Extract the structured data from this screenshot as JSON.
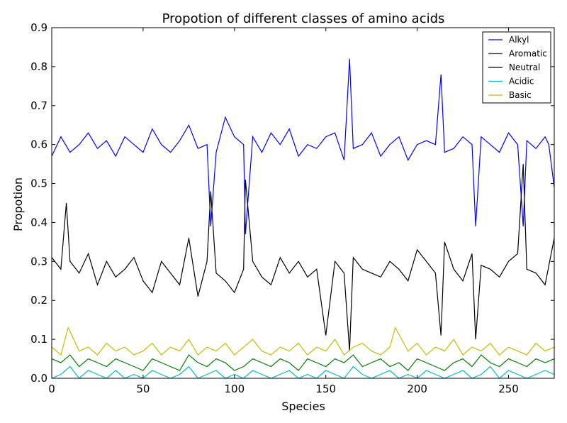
{
  "chart_data": {
    "type": "line",
    "title": "Propotion of different classes of amino acids",
    "xlabel": "Species",
    "ylabel": "Propotion",
    "xlim": [
      0,
      275
    ],
    "ylim": [
      0.0,
      0.9
    ],
    "xticks": [
      0,
      50,
      100,
      150,
      200,
      250
    ],
    "yticks": [
      0.0,
      0.1,
      0.2,
      0.3,
      0.4,
      0.5,
      0.6,
      0.7,
      0.8,
      0.9
    ],
    "ytick_labels": [
      "0.0",
      "0.1",
      "0.2",
      "0.3",
      "0.4",
      "0.5",
      "0.6",
      "0.7",
      "0.8",
      "0.9"
    ],
    "legend_position": "top-right",
    "grid": false,
    "series": [
      {
        "name": "Alkyl",
        "color": "#0000ff",
        "x": [
          0,
          5,
          10,
          15,
          20,
          25,
          30,
          35,
          40,
          45,
          50,
          55,
          60,
          65,
          70,
          75,
          80,
          85,
          87,
          90,
          95,
          100,
          105,
          106,
          110,
          115,
          120,
          125,
          130,
          135,
          140,
          145,
          150,
          155,
          160,
          163,
          165,
          170,
          175,
          180,
          185,
          190,
          195,
          200,
          205,
          210,
          213,
          215,
          220,
          225,
          230,
          232,
          235,
          240,
          245,
          250,
          255,
          258,
          260,
          265,
          270,
          272,
          275
        ],
        "values": [
          0.57,
          0.62,
          0.58,
          0.6,
          0.63,
          0.59,
          0.61,
          0.57,
          0.62,
          0.6,
          0.58,
          0.64,
          0.6,
          0.58,
          0.61,
          0.65,
          0.59,
          0.6,
          0.39,
          0.58,
          0.67,
          0.62,
          0.6,
          0.37,
          0.62,
          0.58,
          0.63,
          0.6,
          0.64,
          0.57,
          0.6,
          0.59,
          0.62,
          0.63,
          0.56,
          0.82,
          0.59,
          0.6,
          0.63,
          0.57,
          0.6,
          0.62,
          0.56,
          0.6,
          0.61,
          0.6,
          0.78,
          0.58,
          0.59,
          0.62,
          0.6,
          0.39,
          0.62,
          0.6,
          0.58,
          0.63,
          0.6,
          0.39,
          0.61,
          0.59,
          0.62,
          0.6,
          0.49
        ]
      },
      {
        "name": "Aromatic",
        "color": "#008000",
        "x": [
          0,
          5,
          10,
          15,
          20,
          25,
          30,
          35,
          40,
          45,
          50,
          55,
          60,
          65,
          70,
          75,
          80,
          85,
          90,
          95,
          100,
          105,
          110,
          115,
          120,
          125,
          130,
          135,
          140,
          145,
          150,
          155,
          160,
          165,
          170,
          175,
          180,
          185,
          190,
          195,
          200,
          205,
          210,
          215,
          220,
          225,
          230,
          235,
          240,
          245,
          250,
          255,
          260,
          265,
          270,
          275
        ],
        "values": [
          0.05,
          0.04,
          0.06,
          0.03,
          0.05,
          0.04,
          0.03,
          0.05,
          0.04,
          0.03,
          0.02,
          0.05,
          0.04,
          0.03,
          0.02,
          0.06,
          0.04,
          0.03,
          0.05,
          0.04,
          0.02,
          0.03,
          0.05,
          0.04,
          0.03,
          0.05,
          0.04,
          0.02,
          0.05,
          0.04,
          0.03,
          0.05,
          0.04,
          0.06,
          0.03,
          0.04,
          0.05,
          0.03,
          0.04,
          0.02,
          0.05,
          0.04,
          0.03,
          0.02,
          0.04,
          0.05,
          0.03,
          0.06,
          0.04,
          0.03,
          0.05,
          0.04,
          0.03,
          0.05,
          0.04,
          0.05
        ]
      },
      {
        "name": "Neutral",
        "color": "#000000",
        "x": [
          0,
          5,
          8,
          10,
          15,
          20,
          25,
          30,
          35,
          40,
          45,
          50,
          55,
          60,
          65,
          70,
          75,
          80,
          85,
          87,
          90,
          95,
          100,
          105,
          106,
          110,
          115,
          120,
          125,
          130,
          135,
          140,
          145,
          150,
          155,
          160,
          163,
          165,
          170,
          175,
          180,
          185,
          190,
          195,
          200,
          205,
          210,
          213,
          215,
          220,
          225,
          230,
          232,
          235,
          240,
          245,
          250,
          255,
          258,
          260,
          265,
          270,
          275
        ],
        "values": [
          0.31,
          0.28,
          0.45,
          0.3,
          0.27,
          0.32,
          0.24,
          0.3,
          0.26,
          0.28,
          0.31,
          0.25,
          0.22,
          0.3,
          0.27,
          0.24,
          0.36,
          0.21,
          0.3,
          0.48,
          0.27,
          0.25,
          0.22,
          0.28,
          0.51,
          0.3,
          0.26,
          0.24,
          0.31,
          0.27,
          0.3,
          0.26,
          0.28,
          0.11,
          0.3,
          0.27,
          0.07,
          0.31,
          0.28,
          0.27,
          0.26,
          0.3,
          0.28,
          0.25,
          0.33,
          0.3,
          0.27,
          0.11,
          0.35,
          0.28,
          0.25,
          0.32,
          0.1,
          0.29,
          0.28,
          0.26,
          0.3,
          0.32,
          0.55,
          0.28,
          0.27,
          0.24,
          0.36
        ]
      },
      {
        "name": "Acidic",
        "color": "#00bfbf",
        "x": [
          0,
          5,
          10,
          15,
          20,
          25,
          30,
          35,
          40,
          45,
          50,
          55,
          60,
          65,
          70,
          75,
          80,
          85,
          90,
          95,
          100,
          105,
          110,
          115,
          120,
          125,
          130,
          135,
          140,
          145,
          150,
          155,
          160,
          165,
          170,
          175,
          180,
          185,
          190,
          195,
          200,
          205,
          210,
          215,
          220,
          225,
          230,
          235,
          240,
          245,
          250,
          255,
          260,
          265,
          270,
          275
        ],
        "values": [
          0.0,
          0.01,
          0.03,
          0.0,
          0.02,
          0.01,
          0.0,
          0.02,
          0.0,
          0.01,
          0.0,
          0.02,
          0.01,
          0.0,
          0.01,
          0.03,
          0.0,
          0.01,
          0.02,
          0.0,
          0.01,
          0.0,
          0.02,
          0.01,
          0.0,
          0.01,
          0.02,
          0.0,
          0.01,
          0.0,
          0.02,
          0.01,
          0.0,
          0.03,
          0.01,
          0.0,
          0.01,
          0.02,
          0.0,
          0.01,
          0.0,
          0.02,
          0.01,
          0.0,
          0.01,
          0.02,
          0.0,
          0.01,
          0.03,
          0.0,
          0.02,
          0.01,
          0.0,
          0.01,
          0.02,
          0.01
        ]
      },
      {
        "name": "Basic",
        "color": "#bfbf00",
        "x": [
          0,
          5,
          9,
          15,
          20,
          25,
          30,
          35,
          40,
          45,
          50,
          55,
          60,
          65,
          70,
          75,
          80,
          85,
          90,
          95,
          100,
          105,
          110,
          115,
          120,
          125,
          130,
          135,
          140,
          145,
          150,
          155,
          160,
          165,
          170,
          175,
          180,
          185,
          188,
          195,
          200,
          205,
          210,
          215,
          220,
          225,
          230,
          235,
          240,
          245,
          250,
          255,
          260,
          265,
          270,
          275
        ],
        "values": [
          0.08,
          0.06,
          0.13,
          0.07,
          0.08,
          0.06,
          0.09,
          0.07,
          0.08,
          0.06,
          0.07,
          0.09,
          0.06,
          0.08,
          0.07,
          0.1,
          0.06,
          0.08,
          0.07,
          0.09,
          0.06,
          0.08,
          0.1,
          0.07,
          0.06,
          0.08,
          0.07,
          0.09,
          0.06,
          0.08,
          0.07,
          0.1,
          0.06,
          0.08,
          0.09,
          0.07,
          0.06,
          0.08,
          0.13,
          0.07,
          0.09,
          0.06,
          0.08,
          0.07,
          0.1,
          0.06,
          0.08,
          0.07,
          0.09,
          0.06,
          0.08,
          0.07,
          0.06,
          0.09,
          0.07,
          0.08
        ]
      }
    ]
  }
}
